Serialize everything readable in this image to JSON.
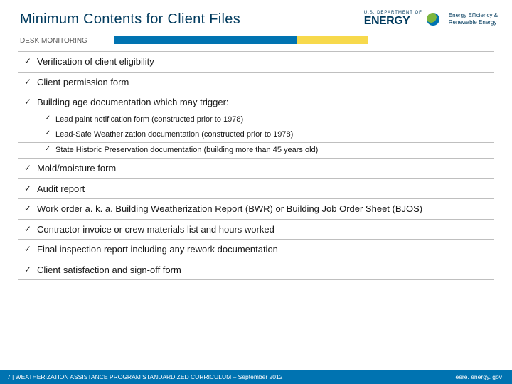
{
  "header": {
    "title": "Minimum Contents for Client Files",
    "logo_dept": "U.S. DEPARTMENT OF",
    "logo_energy": "ENERGY",
    "logo_sub1": "Energy Efficiency &",
    "logo_sub2": "Renewable Energy"
  },
  "subsection": "DESK MONITORING",
  "items": [
    {
      "text": "Verification of client eligibility"
    },
    {
      "text": "Client permission form"
    },
    {
      "text": "Building age documentation which may trigger:",
      "sub": [
        {
          "text": "Lead paint notification form  (constructed prior to 1978)"
        },
        {
          "text": "Lead-Safe Weatherization documentation (constructed prior to 1978)"
        },
        {
          "text": "State Historic Preservation documentation (building more than 45 years old)"
        }
      ]
    },
    {
      "text": "Mold/moisture form"
    },
    {
      "text": "Audit report"
    },
    {
      "text": "Work order a. k. a. Building Weatherization Report (BWR) or Building Job Order Sheet (BJOS)"
    },
    {
      "text": "Contractor invoice or crew materials list and hours worked"
    },
    {
      "text": "Final inspection report including any rework documentation"
    },
    {
      "text": "Client satisfaction and sign-off form"
    }
  ],
  "footer": {
    "left": "7 | WEATHERIZATION ASSISTANCE PROGRAM STANDARDIZED CURRICULUM – September 2012",
    "right": "eere. energy. gov"
  },
  "colors": {
    "title": "#003a5d",
    "stripe_blue": "#0073b1",
    "stripe_yellow": "#f7d94c",
    "text": "#171717",
    "border": "#bfbfbf",
    "footer_bg": "#0073b1",
    "background": "#ffffff"
  },
  "checkmark": "✓"
}
